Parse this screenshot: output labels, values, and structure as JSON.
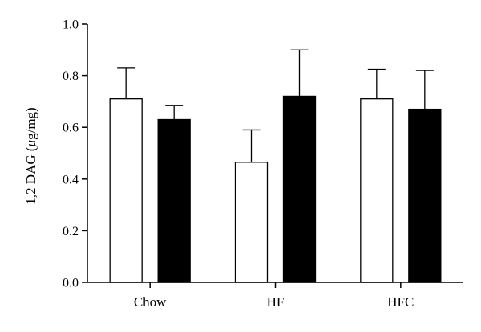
{
  "chart_data": {
    "type": "bar",
    "title": "",
    "xlabel": "",
    "ylabel": "1,2 DAG (μg/mg)",
    "ylabel_parts": {
      "pre": "1,2 DAG (",
      "unit_italic": "μ",
      "post": "g/mg)"
    },
    "ylim": [
      0,
      1.0
    ],
    "yticks": [
      "0.0",
      "0.2",
      "0.4",
      "0.6",
      "0.8",
      "1.0"
    ],
    "categories": [
      "Chow",
      "HF",
      "HFC"
    ],
    "series": [
      {
        "fill": "#ffffff",
        "values": [
          0.71,
          0.465,
          0.71
        ],
        "errors": [
          0.12,
          0.125,
          0.115
        ]
      },
      {
        "fill": "#000000",
        "values": [
          0.63,
          0.72,
          0.67
        ],
        "errors": [
          0.055,
          0.18,
          0.15
        ]
      }
    ],
    "grid": false,
    "legend": "none"
  }
}
